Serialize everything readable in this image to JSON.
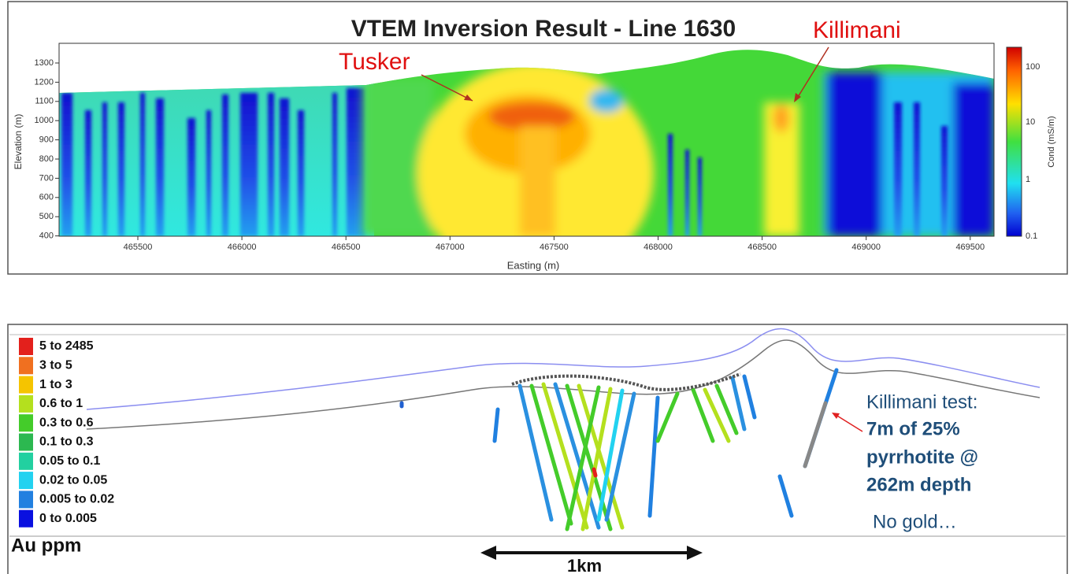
{
  "top_panel": {
    "title": "VTEM Inversion Result - Line 1630",
    "y_axis_label": "Elevation (m)",
    "x_axis_label": "Easting (m)",
    "yticks": [
      "1300",
      "1200",
      "1100",
      "1000",
      "900",
      "800",
      "700",
      "600",
      "500",
      "400"
    ],
    "xticks": [
      "465500",
      "466000",
      "466500",
      "467000",
      "467500",
      "468000",
      "468500",
      "469000",
      "469500"
    ],
    "colorbar_label": "Cond (mS/m)",
    "colorbar_ticks": [
      "100",
      "10",
      "1",
      "0.1"
    ],
    "annotations": [
      "Tusker",
      "Killimani"
    ]
  },
  "bottom_panel": {
    "legend": [
      {
        "label": "5 to 2485",
        "color": "#e3201c"
      },
      {
        "label": "3 to 5",
        "color": "#f07020"
      },
      {
        "label": "1 to 3",
        "color": "#f5c400"
      },
      {
        "label": "0.6 to 1",
        "color": "#b4e01e"
      },
      {
        "label": "0.3 to 0.6",
        "color": "#44cc2a"
      },
      {
        "label": "0.1 to 0.3",
        "color": "#2cb850"
      },
      {
        "label": "0.05 to 0.1",
        "color": "#22d0a0"
      },
      {
        "label": "0.02 to 0.05",
        "color": "#22d2f0"
      },
      {
        "label": "0.005 to 0.02",
        "color": "#2280e0"
      },
      {
        "label": "0 to 0.005",
        "color": "#0a10e0"
      }
    ],
    "legend_title": "Au ppm",
    "annotation": [
      "Killimani test:",
      "7m of 25%",
      "pyrrhotite @",
      "262m depth"
    ],
    "note": "No gold…",
    "scale_label": "1km"
  }
}
